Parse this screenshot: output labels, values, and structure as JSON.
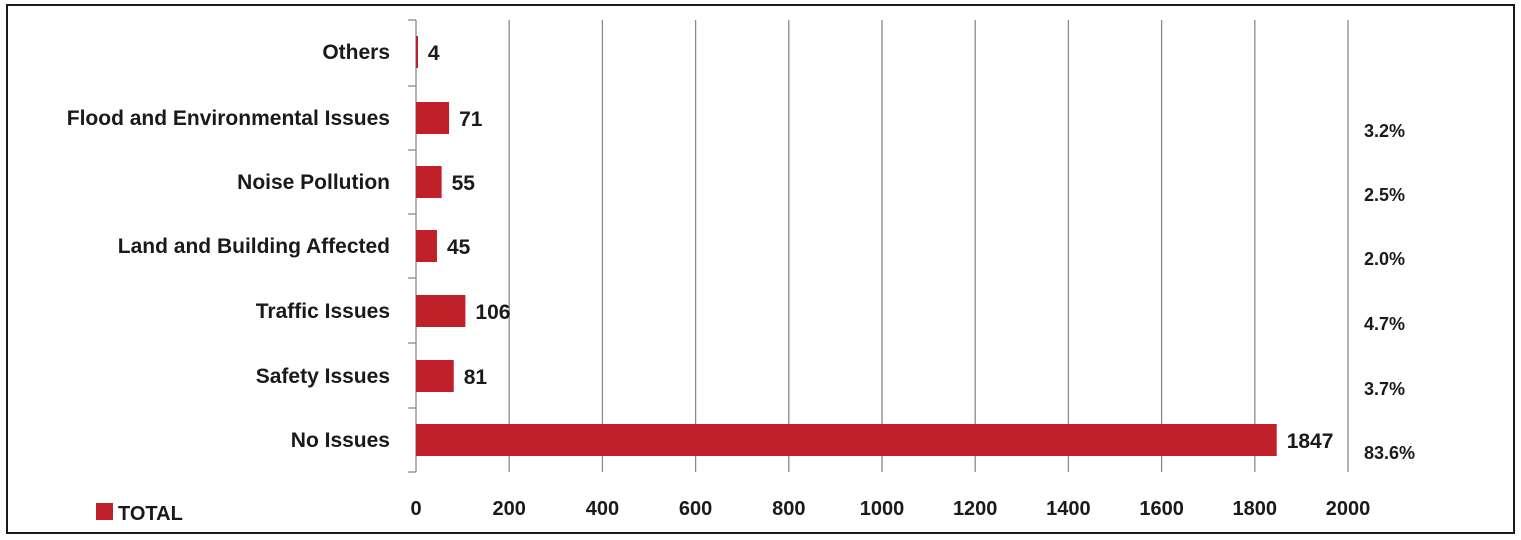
{
  "chart_data": {
    "type": "bar",
    "orientation": "horizontal",
    "categories": [
      "Others",
      "Flood and Environmental Issues",
      "Noise Pollution",
      "Land and Building Affected",
      "Traffic Issues",
      "Safety Issues",
      "No Issues"
    ],
    "series": [
      {
        "name": "TOTAL",
        "values": [
          4,
          71,
          55,
          45,
          106,
          81,
          1847
        ],
        "color": "#c0202a"
      }
    ],
    "data_labels": [
      "4",
      "71",
      "55",
      "45",
      "106",
      "81",
      "1847"
    ],
    "percent_labels": [
      "",
      "3.2%",
      "2.5%",
      "2.0%",
      "4.7%",
      "3.7%",
      "83.6%"
    ],
    "xlim": [
      0,
      2000
    ],
    "xticks": [
      0,
      200,
      400,
      600,
      800,
      1000,
      1200,
      1400,
      1600,
      1800,
      2000
    ],
    "grid": "vertical",
    "legend_position": "bottom-left",
    "title": "",
    "xlabel": "",
    "ylabel": ""
  }
}
